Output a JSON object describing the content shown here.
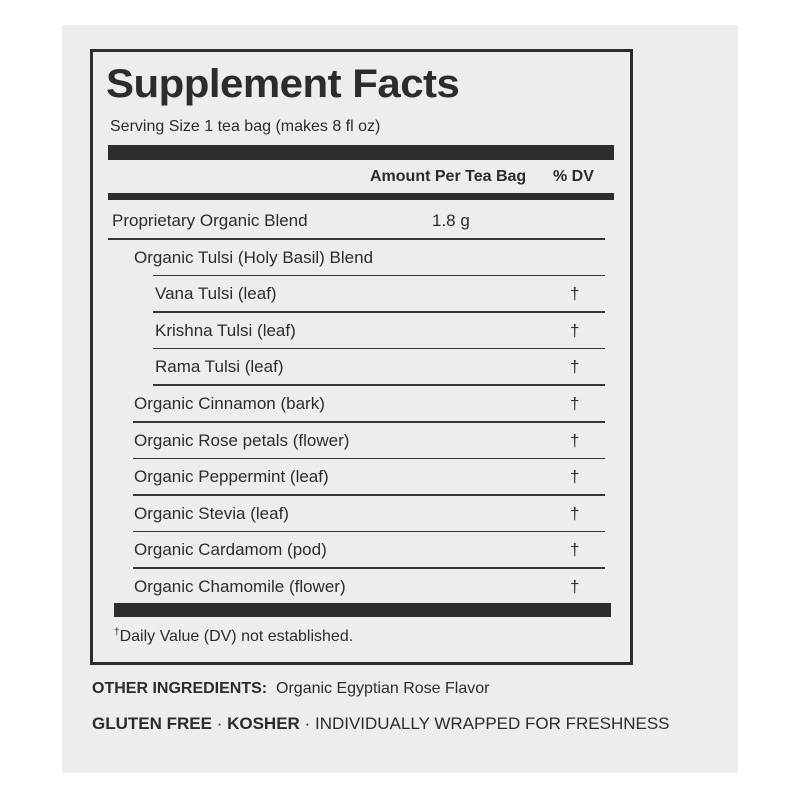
{
  "title": "Supplement Facts",
  "serving_size": "Serving Size 1 tea bag (makes 8 fl oz)",
  "columns": {
    "amount": "Amount Per Tea Bag",
    "dv": "% DV"
  },
  "rows": [
    {
      "name": "Proprietary Organic Blend",
      "amount": "1.8 g",
      "dv": "",
      "level": 0
    },
    {
      "name": "Organic Tulsi (Holy Basil) Blend",
      "amount": "",
      "dv": "",
      "level": 1
    },
    {
      "name": "Vana Tulsi (leaf)",
      "amount": "",
      "dv": "†",
      "level": 2
    },
    {
      "name": "Krishna Tulsi (leaf)",
      "amount": "",
      "dv": "†",
      "level": 2
    },
    {
      "name": "Rama Tulsi (leaf)",
      "amount": "",
      "dv": "†",
      "level": 2
    },
    {
      "name": "Organic Cinnamon (bark)",
      "amount": "",
      "dv": "†",
      "level": 1
    },
    {
      "name": "Organic Rose petals (flower)",
      "amount": "",
      "dv": "†",
      "level": 1
    },
    {
      "name": "Organic Peppermint (leaf)",
      "amount": "",
      "dv": "†",
      "level": 1
    },
    {
      "name": "Organic Stevia (leaf)",
      "amount": "",
      "dv": "†",
      "level": 1
    },
    {
      "name": "Organic Cardamom (pod)",
      "amount": "",
      "dv": "†",
      "level": 1
    },
    {
      "name": "Organic Chamomile (flower)",
      "amount": "",
      "dv": "†",
      "level": 1
    }
  ],
  "footnote": {
    "mark": "†",
    "text": "Daily Value (DV) not established."
  },
  "other_ingredients": {
    "label": "OTHER INGREDIENTS:",
    "text": "Organic Egyptian Rose Flavor"
  },
  "claims": {
    "gluten_free": "GLUTEN FREE",
    "kosher": "KOSHER",
    "separator": "·",
    "wrapped": "INDIVIDUALLY WRAPPED FOR FRESHNESS"
  }
}
